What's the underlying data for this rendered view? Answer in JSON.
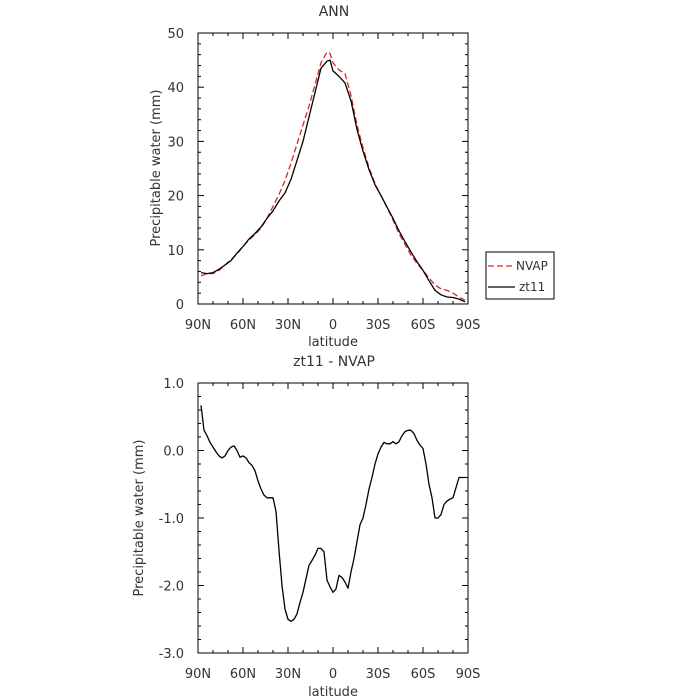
{
  "chart_data": [
    {
      "type": "line",
      "title": "ANN",
      "xlabel": "latitude",
      "ylabel": "Precipitable water (mm)",
      "xlim": [
        90,
        -90
      ],
      "ylim": [
        0,
        50
      ],
      "x_ticks": [
        90,
        60,
        30,
        0,
        -30,
        -60,
        -90
      ],
      "x_tick_labels": [
        "90N",
        "60N",
        "30N",
        "0",
        "30S",
        "60S",
        "90S"
      ],
      "y_ticks": [
        0,
        10,
        20,
        30,
        40,
        50
      ],
      "y_tick_labels": [
        "0",
        "10",
        "20",
        "30",
        "40",
        "50"
      ],
      "grid": false,
      "legend": {
        "placement": "outside-right",
        "items": [
          "NVAP",
          "zt11"
        ]
      },
      "series": [
        {
          "name": "NVAP",
          "color": "#d62728",
          "dash": "dashed",
          "x": [
            88,
            84,
            80,
            76,
            72,
            68,
            64,
            60,
            56,
            52,
            48,
            44,
            40,
            36,
            32,
            28,
            24,
            20,
            16,
            12,
            8,
            4,
            2,
            0,
            -4,
            -8,
            -12,
            -16,
            -20,
            -24,
            -28,
            -32,
            -36,
            -40,
            -44,
            -48,
            -52,
            -56,
            -60,
            -64,
            -68,
            -72,
            -76,
            -80,
            -84,
            -88
          ],
          "y": [
            5.2,
            5.6,
            5.6,
            6.2,
            7.2,
            8.2,
            9.2,
            10.6,
            11.8,
            12.8,
            14.0,
            15.8,
            18.0,
            20.2,
            22.8,
            26.0,
            29.5,
            33.0,
            36.5,
            40.5,
            44.5,
            46.5,
            46.2,
            44.5,
            43.2,
            42.5,
            38.5,
            33.0,
            28.8,
            25.2,
            22.2,
            20.0,
            17.8,
            15.5,
            13.0,
            11.0,
            9.0,
            7.5,
            6.2,
            4.8,
            3.5,
            2.8,
            2.5,
            2.0,
            1.3,
            0.7
          ]
        },
        {
          "name": "zt11",
          "color": "#000000",
          "dash": "solid",
          "x": [
            88,
            84,
            80,
            76,
            72,
            68,
            64,
            60,
            56,
            52,
            48,
            44,
            40,
            36,
            32,
            28,
            24,
            20,
            16,
            12,
            8,
            4,
            2,
            0,
            -4,
            -8,
            -12,
            -16,
            -20,
            -24,
            -28,
            -32,
            -36,
            -40,
            -44,
            -48,
            -52,
            -56,
            -60,
            -64,
            -68,
            -72,
            -76,
            -80,
            -84,
            -88
          ],
          "y": [
            5.8,
            5.6,
            5.8,
            6.4,
            7.2,
            8.0,
            9.4,
            10.6,
            12.0,
            13.0,
            14.2,
            15.8,
            17.2,
            19.0,
            20.5,
            23.0,
            26.5,
            30.0,
            34.5,
            39.0,
            43.5,
            44.8,
            45.0,
            43.0,
            42.0,
            40.8,
            37.5,
            32.2,
            28.2,
            24.8,
            22.0,
            20.0,
            17.9,
            15.8,
            13.5,
            11.5,
            9.6,
            7.8,
            6.2,
            4.3,
            2.5,
            1.7,
            1.3,
            1.2,
            0.9,
            0.4
          ]
        }
      ]
    },
    {
      "type": "line",
      "title": "zt11 - NVAP",
      "xlabel": "latitude",
      "ylabel": "Precipitable water (mm)",
      "xlim": [
        90,
        -90
      ],
      "ylim": [
        -3,
        1
      ],
      "x_ticks": [
        90,
        60,
        30,
        0,
        -30,
        -60,
        -90
      ],
      "x_tick_labels": [
        "90N",
        "60N",
        "30N",
        "0",
        "30S",
        "60S",
        "90S"
      ],
      "y_ticks": [
        1,
        0,
        -1,
        -2,
        -3
      ],
      "y_tick_labels": [
        "1.0",
        "0.0",
        "-1.0",
        "-2.0",
        "-3.0"
      ],
      "grid": false,
      "series": [
        {
          "color": "#000000",
          "dash": "solid",
          "x": [
            88,
            86,
            84,
            82,
            80,
            78,
            76,
            74,
            72,
            70,
            68,
            66,
            64,
            62,
            60,
            58,
            56,
            54,
            52,
            50,
            48,
            46,
            44,
            42,
            40,
            38,
            36,
            34,
            32,
            30,
            28,
            26,
            24,
            22,
            20,
            18,
            16,
            14,
            12,
            10,
            8,
            6,
            4,
            2,
            0,
            -2,
            -4,
            -6,
            -8,
            -10,
            -12,
            -14,
            -16,
            -18,
            -20,
            -22,
            -24,
            -26,
            -28,
            -30,
            -32,
            -34,
            -36,
            -38,
            -40,
            -42,
            -44,
            -46,
            -48,
            -50,
            -52,
            -54,
            -56,
            -58,
            -60,
            -62,
            -64,
            -66,
            -68,
            -70,
            -72,
            -74,
            -76,
            -78,
            -80,
            -82,
            -84,
            -86,
            -88
          ],
          "y": [
            0.67,
            0.3,
            0.22,
            0.12,
            0.05,
            -0.02,
            -0.08,
            -0.11,
            -0.08,
            0.0,
            0.05,
            0.07,
            0.0,
            -0.1,
            -0.08,
            -0.11,
            -0.18,
            -0.22,
            -0.3,
            -0.45,
            -0.57,
            -0.66,
            -0.7,
            -0.7,
            -0.7,
            -0.9,
            -1.48,
            -2.0,
            -2.35,
            -2.5,
            -2.53,
            -2.5,
            -2.42,
            -2.25,
            -2.1,
            -1.9,
            -1.7,
            -1.63,
            -1.55,
            -1.45,
            -1.45,
            -1.5,
            -1.92,
            -2.02,
            -2.1,
            -2.05,
            -1.85,
            -1.88,
            -1.95,
            -2.04,
            -1.8,
            -1.6,
            -1.35,
            -1.1,
            -1.0,
            -0.8,
            -0.57,
            -0.4,
            -0.2,
            -0.05,
            0.05,
            0.12,
            0.1,
            0.1,
            0.13,
            0.1,
            0.13,
            0.22,
            0.28,
            0.3,
            0.3,
            0.25,
            0.15,
            0.08,
            0.03,
            -0.2,
            -0.5,
            -0.7,
            -1.0,
            -1.0,
            -0.95,
            -0.8,
            -0.75,
            -0.72,
            -0.7,
            -0.55,
            -0.4,
            -0.4,
            -0.4
          ]
        }
      ]
    }
  ]
}
